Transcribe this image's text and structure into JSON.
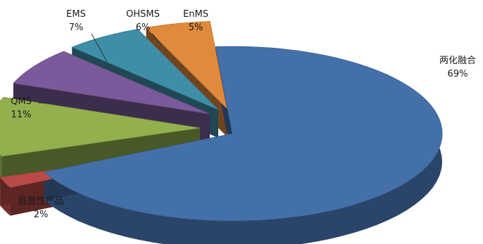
{
  "chart_data": {
    "type": "pie",
    "style": "3d-exploded",
    "title": "",
    "legend": "none",
    "slices": [
      {
        "label": "两化融合",
        "value": 69,
        "percent_label": "69%",
        "color": "#4470aa"
      },
      {
        "label": "自愿性产品",
        "value": 2,
        "percent_label": "2%",
        "color": "#b94a48"
      },
      {
        "label": "QMS",
        "value": 11,
        "percent_label": "11%",
        "color": "#92b04e"
      },
      {
        "label": "EMS",
        "value": 7,
        "percent_label": "7%",
        "color": "#7a5a9a"
      },
      {
        "label": "OHSMS",
        "value": 6,
        "percent_label": "6%",
        "color": "#3f8ea8"
      },
      {
        "label": "EnMS",
        "value": 5,
        "percent_label": "5%",
        "color": "#e08a3c"
      }
    ]
  }
}
